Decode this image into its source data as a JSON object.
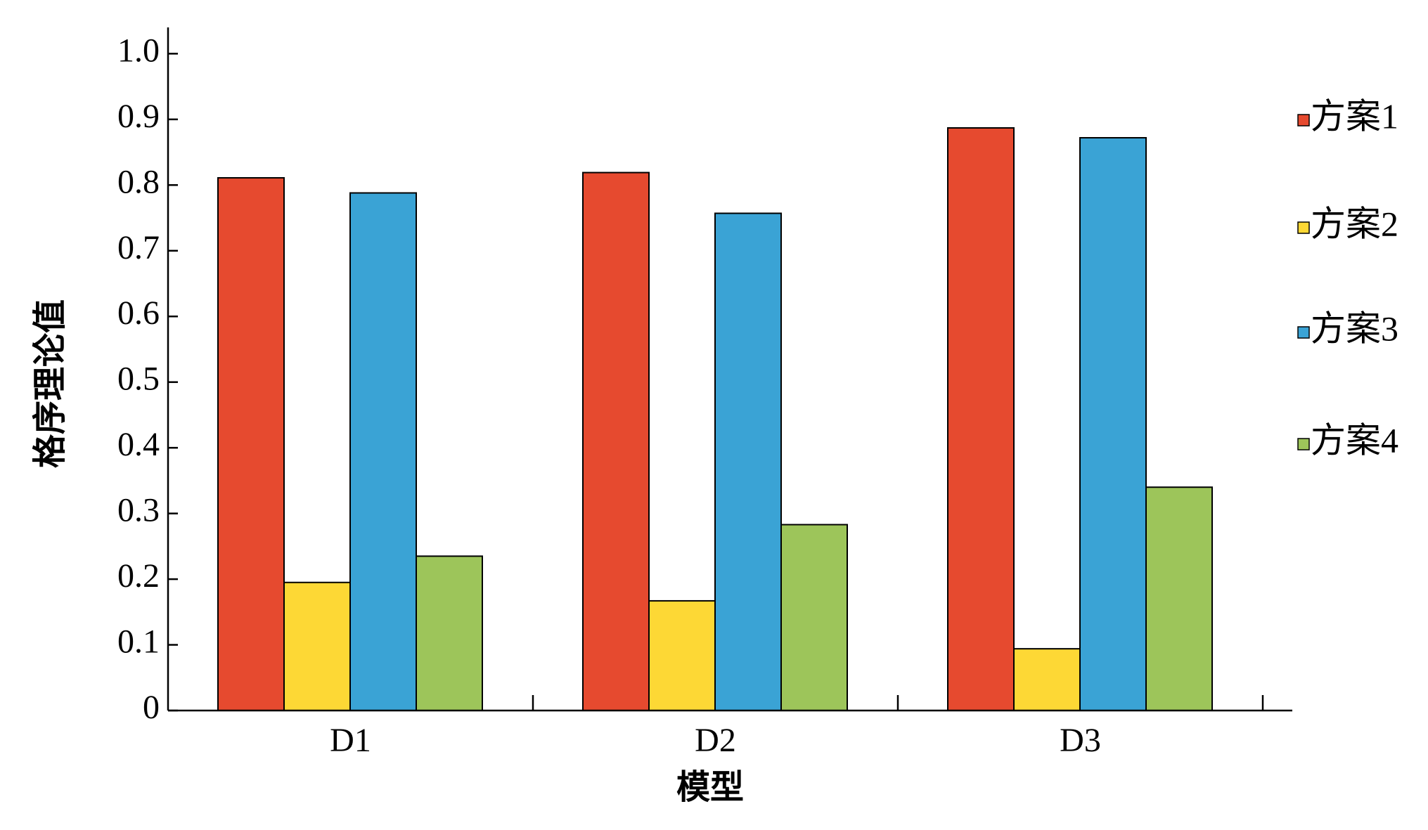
{
  "chart_data": {
    "type": "bar",
    "x_label": "模型",
    "y_label": "格序理论值",
    "categories": [
      "D1",
      "D2",
      "D3"
    ],
    "series": [
      {
        "name": "方案1",
        "color": "#e64a2f",
        "values": [
          0.811,
          0.819,
          0.887
        ]
      },
      {
        "name": "方案2",
        "color": "#fdd835",
        "values": [
          0.195,
          0.167,
          0.094
        ]
      },
      {
        "name": "方案3",
        "color": "#3aa3d5",
        "values": [
          0.788,
          0.757,
          0.872
        ]
      },
      {
        "name": "方案4",
        "color": "#9dc55a",
        "values": [
          0.235,
          0.283,
          0.34
        ]
      }
    ],
    "ylim": [
      0,
      1.04
    ],
    "yticks": [
      0,
      0.1,
      0.2,
      0.3,
      0.4,
      0.5,
      0.6,
      0.7,
      0.8,
      0.9,
      {
        "value": 1,
        "label": "1.0"
      }
    ],
    "legend": "right"
  }
}
